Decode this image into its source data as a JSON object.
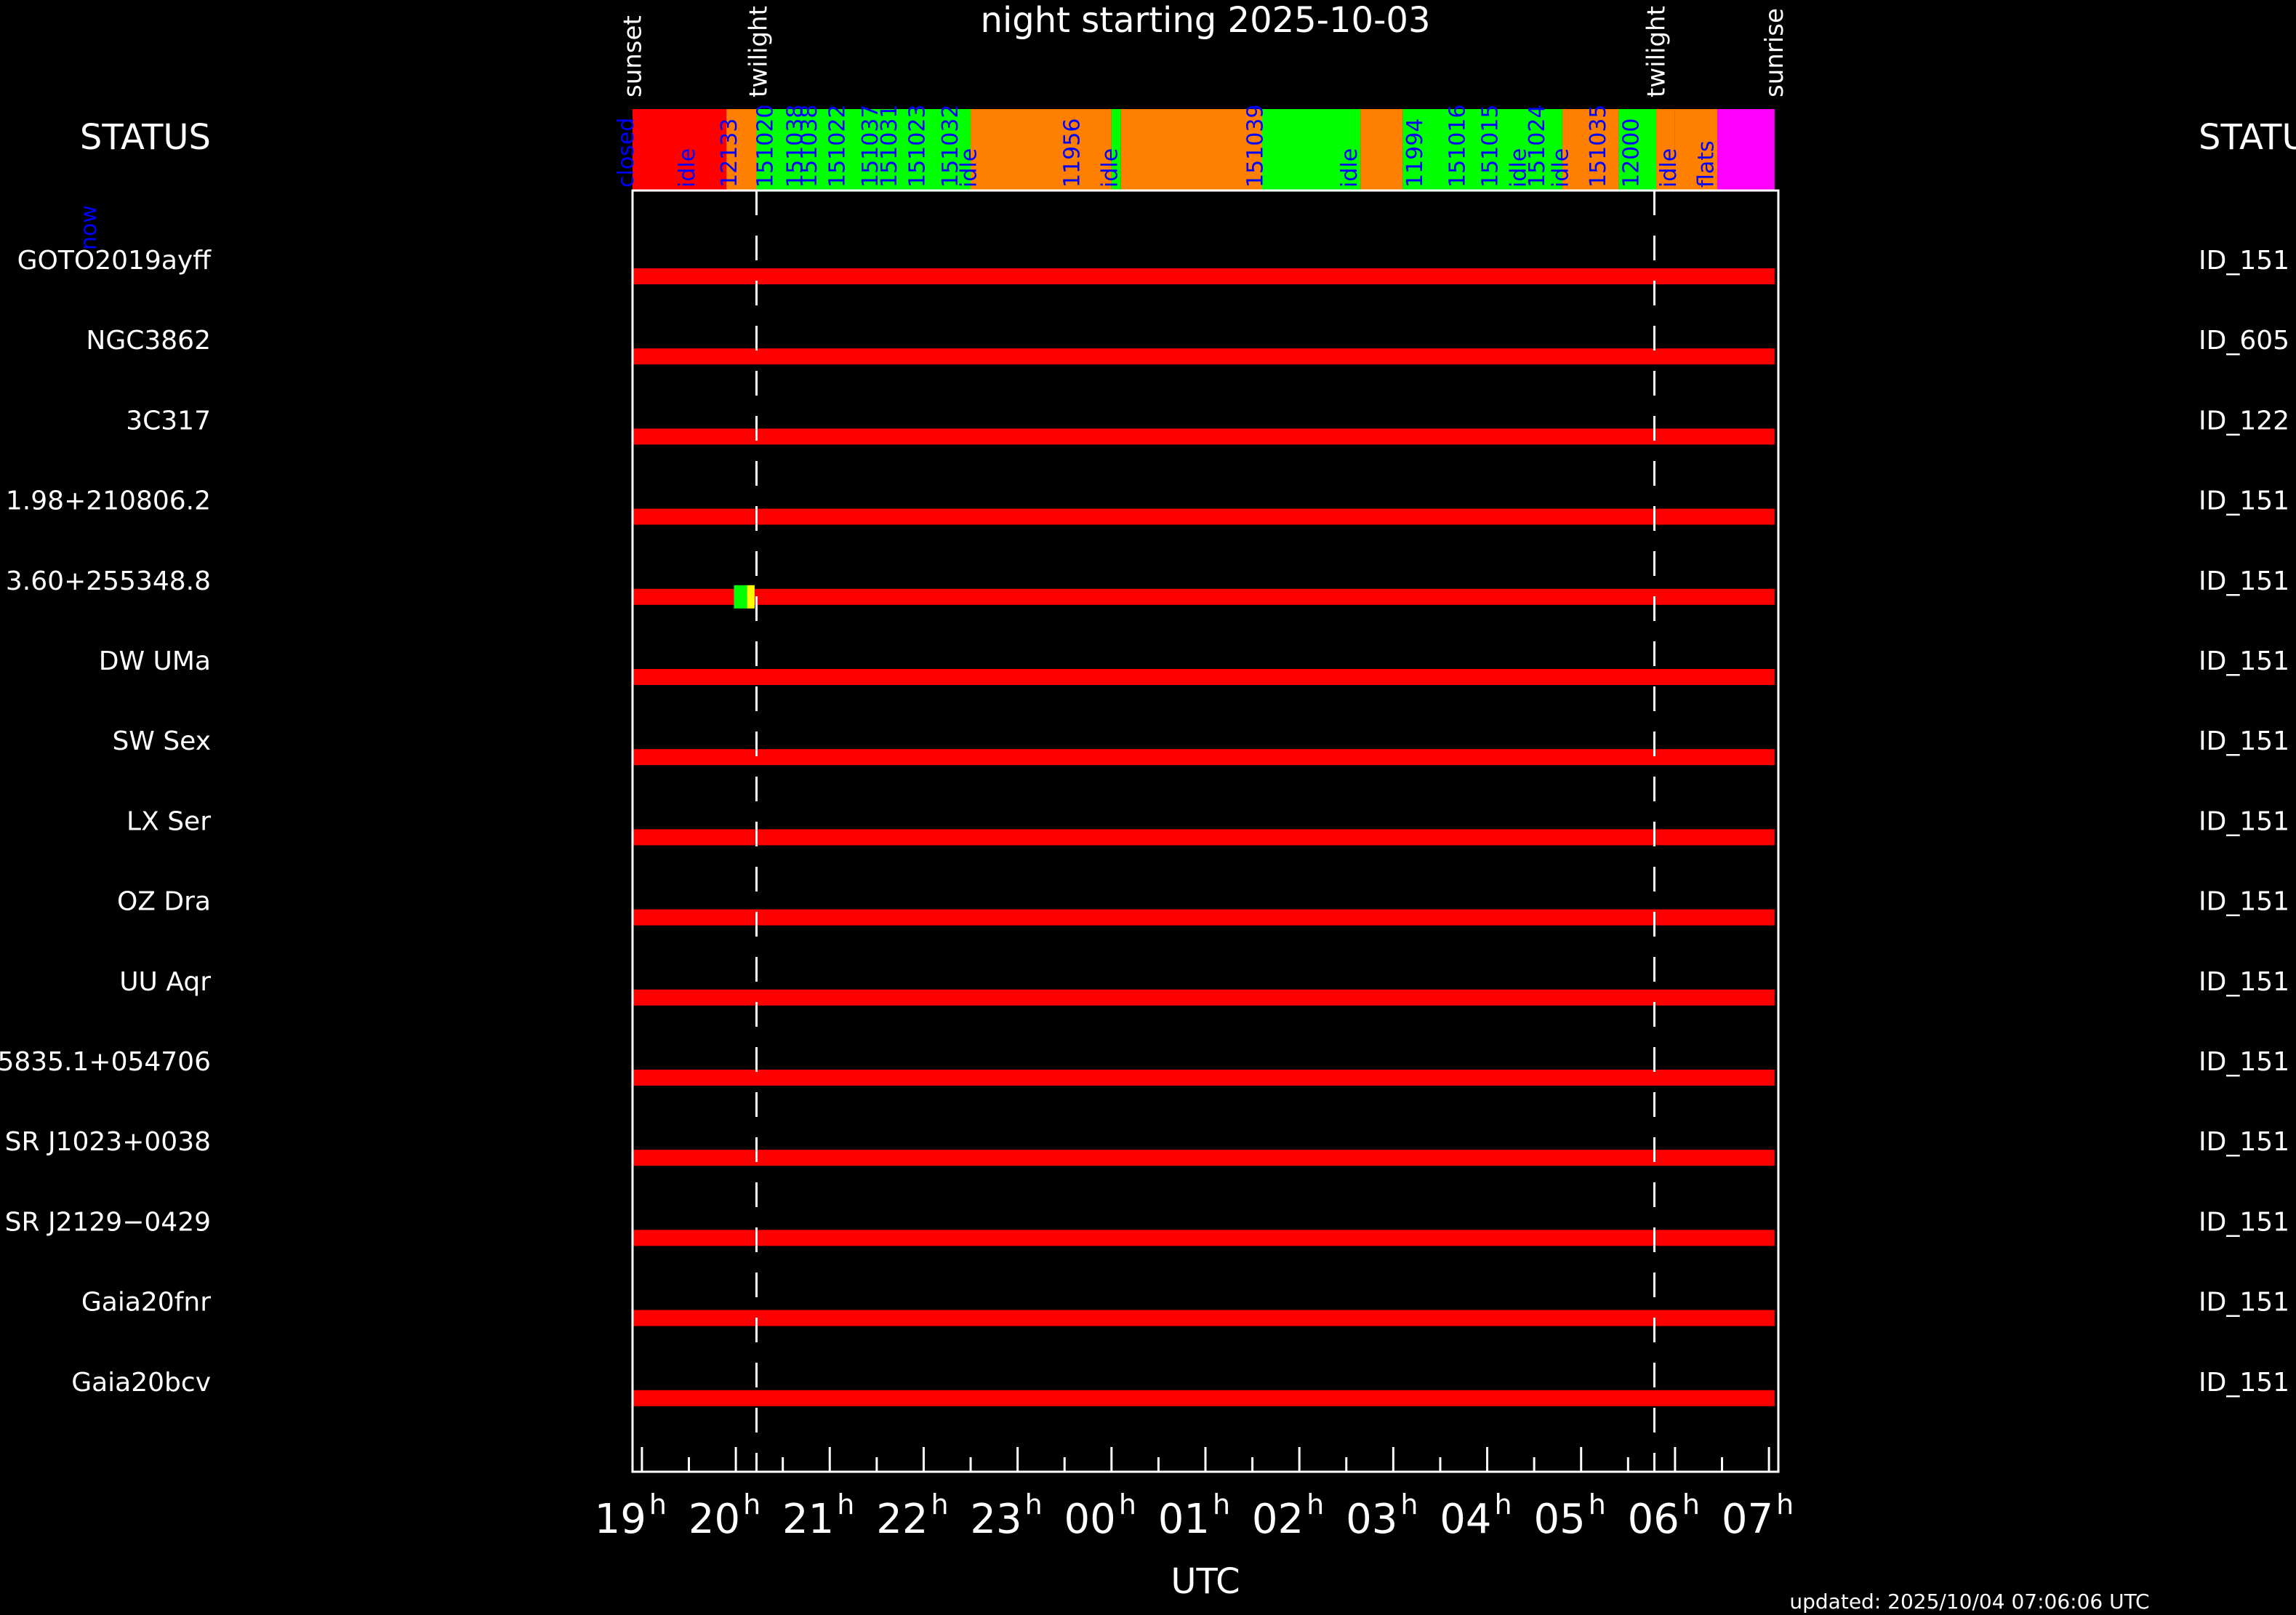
{
  "title": "night starting 2025-10-03",
  "updated": "updated: 2025/10/04 07:06:06 UTC",
  "status_label_left": "STATUS",
  "status_label_right": "STATU",
  "now_label": "now",
  "colors": {
    "background": "#000000",
    "frame": "#ffffff",
    "target_bar": "#ff0000",
    "closed": "#ff0000",
    "idle": "#00ff00",
    "observing": "#ff8000",
    "flats": "#ff00ff",
    "label_text": "#0000ff",
    "pixel_green": "#00ff00",
    "pixel_yellow": "#ffff00"
  },
  "chart_data": {
    "type": "timeline",
    "xlabel": "UTC",
    "x_range_hours": [
      18.9,
      31.1
    ],
    "x_tick_hours": [
      19,
      20,
      21,
      22,
      23,
      24,
      25,
      26,
      27,
      28,
      29,
      30,
      31
    ],
    "x_tick_labels": [
      "19",
      "20",
      "21",
      "22",
      "23",
      "00",
      "01",
      "02",
      "03",
      "04",
      "05",
      "06",
      "07"
    ],
    "x_tick_suffix": "h",
    "events": [
      {
        "label": "sunset",
        "hour": 18.88
      },
      {
        "label": "twilight",
        "hour": 20.22
      },
      {
        "label": "twilight",
        "hour": 29.78
      },
      {
        "label": "sunrise",
        "hour": 31.06
      }
    ],
    "dashed_lines_hours": [
      20.22,
      29.78
    ],
    "status_segments": [
      {
        "start": 18.9,
        "end": 19.55,
        "state": "closed",
        "label": "closed",
        "label_hour": 18.8
      },
      {
        "start": 19.55,
        "end": 19.9,
        "state": "closed",
        "label": "idle",
        "label_hour": 19.45
      },
      {
        "start": 19.9,
        "end": 20.22,
        "state": "observing",
        "label": "12133",
        "label_hour": 19.9
      },
      {
        "start": 20.22,
        "end": 22.5,
        "state": "idle",
        "label": "151020",
        "label_hour": 20.28
      },
      {
        "start": 22.5,
        "end": 24.0,
        "state": "observing",
        "label": "11956",
        "label_hour": 23.55
      },
      {
        "start": 24.0,
        "end": 24.1,
        "state": "idle",
        "label": "idle",
        "label_hour": 23.95
      },
      {
        "start": 24.1,
        "end": 25.6,
        "state": "observing",
        "label": "151039",
        "label_hour": 25.5
      },
      {
        "start": 25.6,
        "end": 26.65,
        "state": "idle",
        "label": "idle",
        "label_hour": 26.5
      },
      {
        "start": 26.65,
        "end": 27.1,
        "state": "observing",
        "label": "11994",
        "label_hour": 27.2
      },
      {
        "start": 27.1,
        "end": 28.8,
        "state": "idle",
        "label": "151016",
        "label_hour": 27.65
      },
      {
        "start": 28.8,
        "end": 29.4,
        "state": "observing",
        "label": "151035",
        "label_hour": 29.15
      },
      {
        "start": 29.4,
        "end": 29.8,
        "state": "idle",
        "label": "12000",
        "label_hour": 29.5
      },
      {
        "start": 29.8,
        "end": 30.0,
        "state": "observing",
        "label": "idle",
        "label_hour": 29.9
      },
      {
        "start": 30.0,
        "end": 30.45,
        "state": "observing",
        "label": "flats",
        "label_hour": 30.3
      },
      {
        "start": 30.45,
        "end": 31.06,
        "state": "flats",
        "label": "",
        "label_hour": 30.6
      }
    ],
    "status_extra_labels": [
      {
        "label": "151038",
        "hour": 20.6
      },
      {
        "label": "151038",
        "hour": 20.75
      },
      {
        "label": "151022",
        "hour": 21.05
      },
      {
        "label": "151037",
        "hour": 21.4
      },
      {
        "label": "151031",
        "hour": 21.6
      },
      {
        "label": "151023",
        "hour": 21.9
      },
      {
        "label": "151032",
        "hour": 22.25
      },
      {
        "label": "idle",
        "hour": 22.45
      },
      {
        "label": "151015",
        "hour": 28.0
      },
      {
        "label": "idle",
        "hour": 28.3
      },
      {
        "label": "151024",
        "hour": 28.5
      },
      {
        "label": "idle",
        "hour": 28.75
      }
    ],
    "targets": [
      {
        "name": "GOTO2019ayff",
        "id": "ID_151"
      },
      {
        "name": "NGC3862",
        "id": "ID_605"
      },
      {
        "name": "3C317",
        "id": "ID_122"
      },
      {
        "name": "1.98+210806.2",
        "id": "ID_151"
      },
      {
        "name": "3.60+255348.8",
        "id": "ID_151"
      },
      {
        "name": "DW UMa",
        "id": "ID_151"
      },
      {
        "name": "SW Sex",
        "id": "ID_151"
      },
      {
        "name": "LX Ser",
        "id": "ID_151"
      },
      {
        "name": "OZ Dra",
        "id": "ID_151"
      },
      {
        "name": "UU Aqr",
        "id": "ID_151"
      },
      {
        "name": "5835.1+054706",
        "id": "ID_151"
      },
      {
        "name": "SR J1023+0038",
        "id": "ID_151"
      },
      {
        "name": "SR J2129−0429",
        "id": "ID_151"
      },
      {
        "name": "Gaia20fnr",
        "id": "ID_151"
      },
      {
        "name": "Gaia20bcv",
        "id": "ID_151"
      }
    ],
    "target_visibility_hours": [
      18.9,
      31.06
    ],
    "observation_marks": [
      {
        "target_index": 4,
        "start": 19.98,
        "end": 20.12,
        "color": "#00ff00"
      },
      {
        "target_index": 4,
        "start": 20.12,
        "end": 20.2,
        "color": "#ffff00"
      }
    ]
  }
}
